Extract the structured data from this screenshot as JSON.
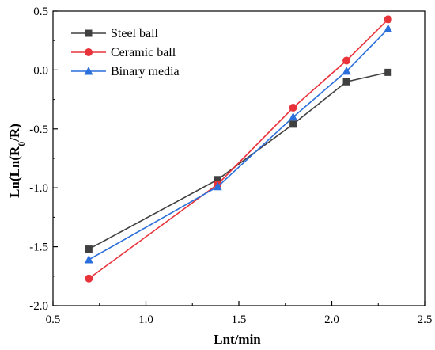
{
  "chart_data": {
    "type": "line",
    "xlabel": "Lnt/min",
    "ylabel_main": "Ln(Ln(R",
    "ylabel_sub": "0",
    "ylabel_tail": "/R)",
    "xlim": [
      0.5,
      2.5
    ],
    "ylim": [
      -2.0,
      0.5
    ],
    "x_ticks": [
      0.5,
      1.0,
      1.5,
      2.0,
      2.5
    ],
    "x_tick_labels": [
      "0.5",
      "1.0",
      "1.5",
      "2.0",
      "2.5"
    ],
    "y_ticks": [
      -2.0,
      -1.5,
      -1.0,
      -0.5,
      0.0,
      0.5
    ],
    "y_tick_labels": [
      "-2.0",
      "-1.5",
      "-1.0",
      "-0.5",
      "0.0",
      "0.5"
    ],
    "grid": false,
    "legend_position": "top-left",
    "series": [
      {
        "name": "Steel ball",
        "color": "#404040",
        "marker": "square",
        "x": [
          0.693,
          1.386,
          1.792,
          2.079,
          2.303
        ],
        "y": [
          -1.52,
          -0.93,
          -0.46,
          -0.1,
          -0.02
        ]
      },
      {
        "name": "Ceramic ball",
        "color": "#e8333b",
        "marker": "circle",
        "x": [
          0.693,
          1.386,
          1.792,
          2.079,
          2.303
        ],
        "y": [
          -1.77,
          -0.97,
          -0.32,
          0.08,
          0.43
        ]
      },
      {
        "name": "Binary media",
        "color": "#2a6fdb",
        "marker": "triangle",
        "x": [
          0.693,
          1.386,
          1.792,
          2.079,
          2.303
        ],
        "y": [
          -1.61,
          -0.99,
          -0.4,
          -0.01,
          0.35
        ]
      }
    ]
  }
}
